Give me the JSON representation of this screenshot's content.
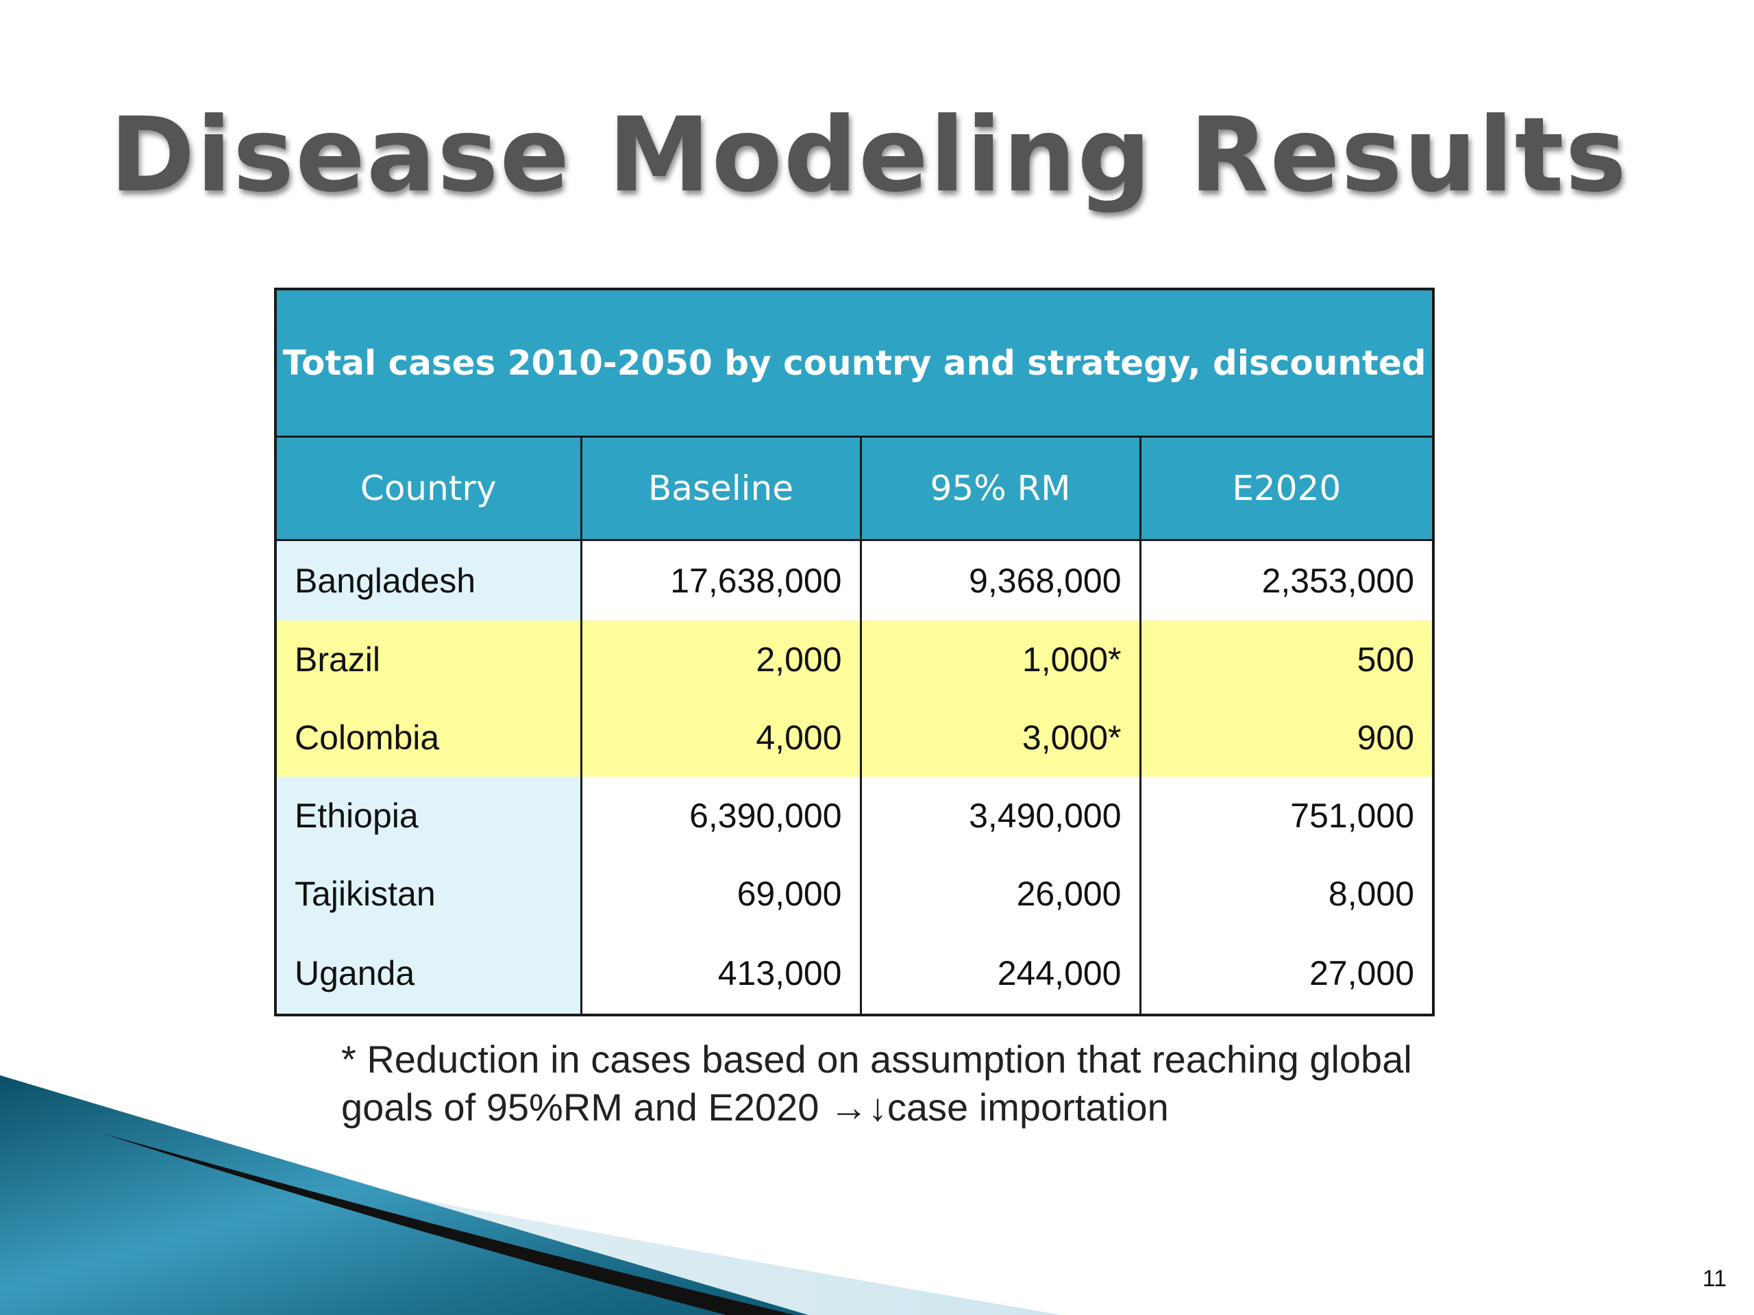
{
  "slide": {
    "title": "Disease Modeling Results",
    "page_number": "11",
    "footnote_line1": "* Reduction in cases based on assumption that reaching global",
    "footnote_line2": "goals of 95%RM and E2020 →↓case importation"
  },
  "table": {
    "caption": "Total cases 2010-2050 by country and strategy, discounted",
    "headers": [
      "Country",
      "Baseline",
      "95% RM",
      "E2020"
    ],
    "rows": [
      {
        "country": "Bangladesh",
        "baseline": "17,638,000",
        "rm95": "9,368,000",
        "e2020": "2,353,000",
        "highlighted": false
      },
      {
        "country": "Brazil",
        "baseline": "2,000",
        "rm95": "1,000*",
        "e2020": "500",
        "highlighted": true
      },
      {
        "country": "Colombia",
        "baseline": "4,000",
        "rm95": "3,000*",
        "e2020": "900",
        "highlighted": true
      },
      {
        "country": "Ethiopia",
        "baseline": "6,390,000",
        "rm95": "3,490,000",
        "e2020": "751,000",
        "highlighted": false
      },
      {
        "country": "Tajikistan",
        "baseline": "69,000",
        "rm95": "26,000",
        "e2020": "8,000",
        "highlighted": false
      },
      {
        "country": "Uganda",
        "baseline": "413,000",
        "rm95": "244,000",
        "e2020": "27,000",
        "highlighted": false
      }
    ]
  },
  "colors": {
    "header_bg": "#2fa3c3",
    "country_column_bg": "#e0f3f8",
    "highlight_row_bg": "#fdfd9b",
    "title_text": "#555555"
  }
}
